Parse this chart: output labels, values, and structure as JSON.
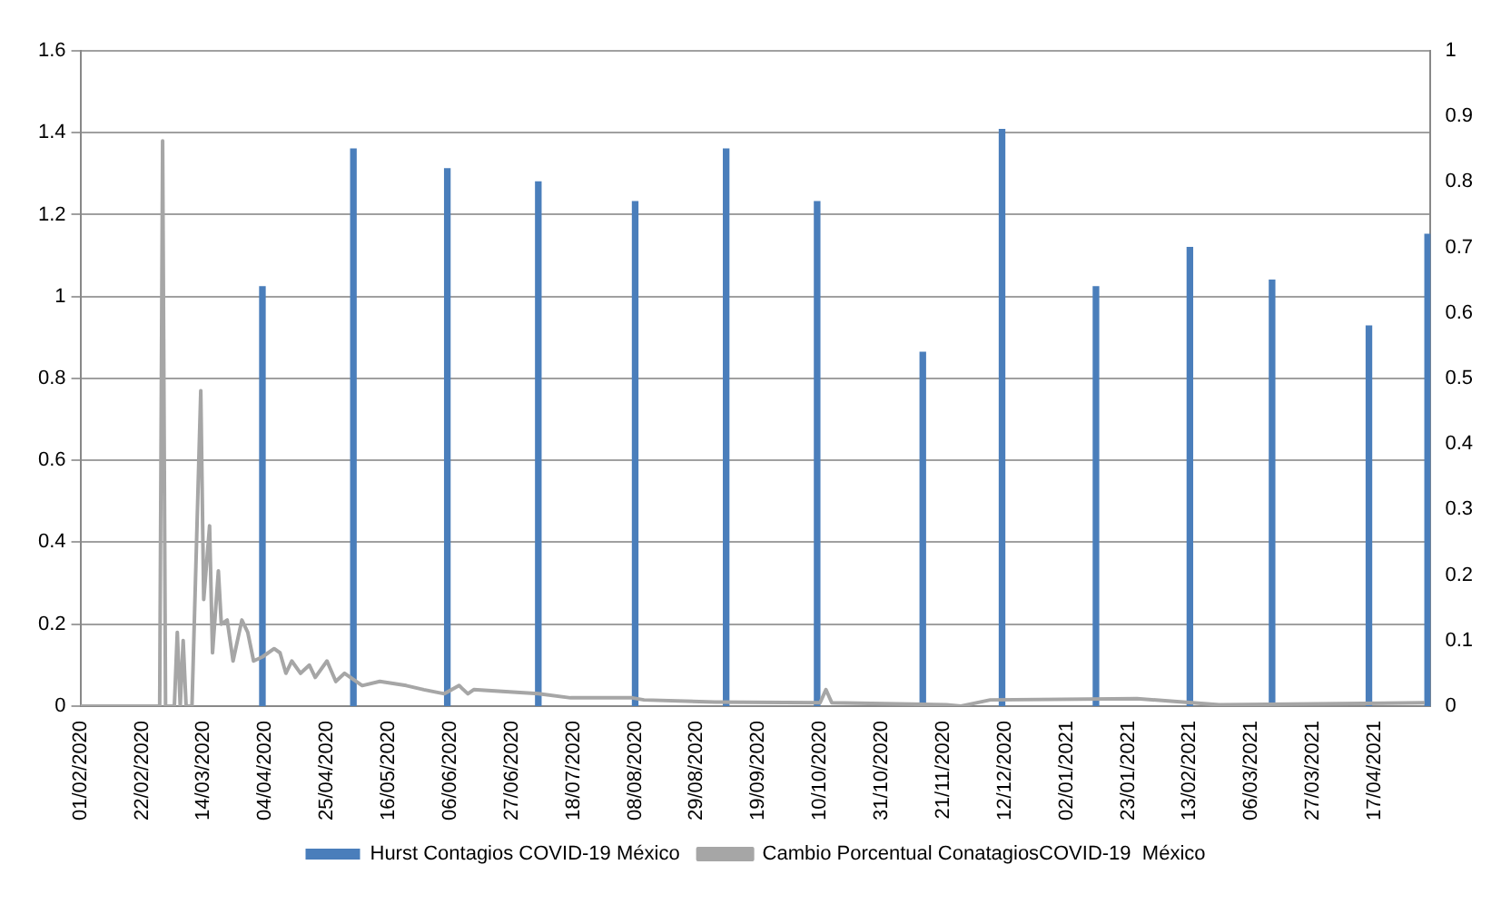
{
  "chart_data": {
    "type": "bar",
    "xlim": [
      "2020-02-01",
      "2021-05-06"
    ],
    "xticks": [
      {
        "value": "2020-02-01",
        "label": "01/02/2020"
      },
      {
        "value": "2020-02-22",
        "label": "22/02/2020"
      },
      {
        "value": "2020-03-14",
        "label": "14/03/2020"
      },
      {
        "value": "2020-04-04",
        "label": "04/04/2020"
      },
      {
        "value": "2020-04-25",
        "label": "25/04/2020"
      },
      {
        "value": "2020-05-16",
        "label": "16/05/2020"
      },
      {
        "value": "2020-06-06",
        "label": "06/06/2020"
      },
      {
        "value": "2020-06-27",
        "label": "27/06/2020"
      },
      {
        "value": "2020-07-18",
        "label": "18/07/2020"
      },
      {
        "value": "2020-08-08",
        "label": "08/08/2020"
      },
      {
        "value": "2020-08-29",
        "label": "29/08/2020"
      },
      {
        "value": "2020-09-19",
        "label": "19/09/2020"
      },
      {
        "value": "2020-10-10",
        "label": "10/10/2020"
      },
      {
        "value": "2020-10-31",
        "label": "31/10/2020"
      },
      {
        "value": "2020-11-21",
        "label": "21/11/2020"
      },
      {
        "value": "2020-12-12",
        "label": "12/12/2020"
      },
      {
        "value": "2021-01-02",
        "label": "02/01/2021"
      },
      {
        "value": "2021-01-23",
        "label": "23/01/2021"
      },
      {
        "value": "2021-02-13",
        "label": "13/02/2021"
      },
      {
        "value": "2021-03-06",
        "label": "06/03/2021"
      },
      {
        "value": "2021-03-27",
        "label": "27/03/2021"
      },
      {
        "value": "2021-04-17",
        "label": "17/04/2021"
      }
    ],
    "ylim": [
      0,
      1.6
    ],
    "yticks": [
      0,
      0.2,
      0.4,
      0.6,
      0.8,
      1,
      1.2,
      1.4,
      1.6
    ],
    "y2lim": [
      0,
      1
    ],
    "y2ticks": [
      0,
      0.1,
      0.2,
      0.3,
      0.4,
      0.5,
      0.6,
      0.7,
      0.8,
      0.9,
      1
    ],
    "grid": "y",
    "legend": "bottom",
    "series": [
      {
        "name": "Hurst Contagios COVID-19 México",
        "axis": "y2",
        "color": "#4a7ebb",
        "x": [
          "2020-04-03",
          "2020-05-04",
          "2020-06-05",
          "2020-07-06",
          "2020-08-08",
          "2020-09-08",
          "2020-10-09",
          "2020-11-14",
          "2020-12-11",
          "2021-01-12",
          "2021-02-13",
          "2021-03-13",
          "2021-04-15",
          "2021-05-05"
        ],
        "values": [
          0.64,
          0.85,
          0.82,
          0.8,
          0.77,
          0.85,
          0.77,
          0.54,
          0.88,
          0.64,
          0.7,
          0.65,
          0.58,
          0.72
        ]
      },
      {
        "name": "Cambio Porcentual ConatagiosCOVID-19  México",
        "type": "line",
        "color": "#a6a6a6",
        "x": [
          "2020-02-01",
          "2020-02-28",
          "2020-02-29",
          "2020-03-01",
          "2020-03-04",
          "2020-03-05",
          "2020-03-06",
          "2020-03-07",
          "2020-03-08",
          "2020-03-10",
          "2020-03-13",
          "2020-03-14",
          "2020-03-16",
          "2020-03-17",
          "2020-03-19",
          "2020-03-20",
          "2020-03-22",
          "2020-03-24",
          "2020-03-27",
          "2020-03-29",
          "2020-03-31",
          "2020-04-03",
          "2020-04-07",
          "2020-04-09",
          "2020-04-11",
          "2020-04-13",
          "2020-04-16",
          "2020-04-19",
          "2020-04-21",
          "2020-04-25",
          "2020-04-28",
          "2020-05-01",
          "2020-05-07",
          "2020-05-13",
          "2020-05-22",
          "2020-05-28",
          "2020-06-04",
          "2020-06-09",
          "2020-06-12",
          "2020-06-14",
          "2020-07-06",
          "2020-07-17",
          "2020-08-07",
          "2020-08-11",
          "2020-09-04",
          "2020-10-10",
          "2020-10-12",
          "2020-10-14",
          "2020-11-22",
          "2020-11-27",
          "2020-12-07",
          "2021-01-26",
          "2021-02-23",
          "2021-05-04"
        ],
        "values": [
          0,
          0,
          1.38,
          0,
          0,
          0.18,
          0,
          0.16,
          0,
          0,
          0.77,
          0.26,
          0.44,
          0.13,
          0.33,
          0.2,
          0.21,
          0.11,
          0.21,
          0.18,
          0.11,
          0.12,
          0.14,
          0.13,
          0.08,
          0.11,
          0.08,
          0.1,
          0.07,
          0.11,
          0.06,
          0.08,
          0.05,
          0.06,
          0.05,
          0.04,
          0.03,
          0.05,
          0.03,
          0.04,
          0.03,
          0.02,
          0.02,
          0.015,
          0.01,
          0.008,
          0.04,
          0.008,
          0.003,
          0,
          0.015,
          0.018,
          0.003,
          0.008
        ]
      }
    ]
  }
}
